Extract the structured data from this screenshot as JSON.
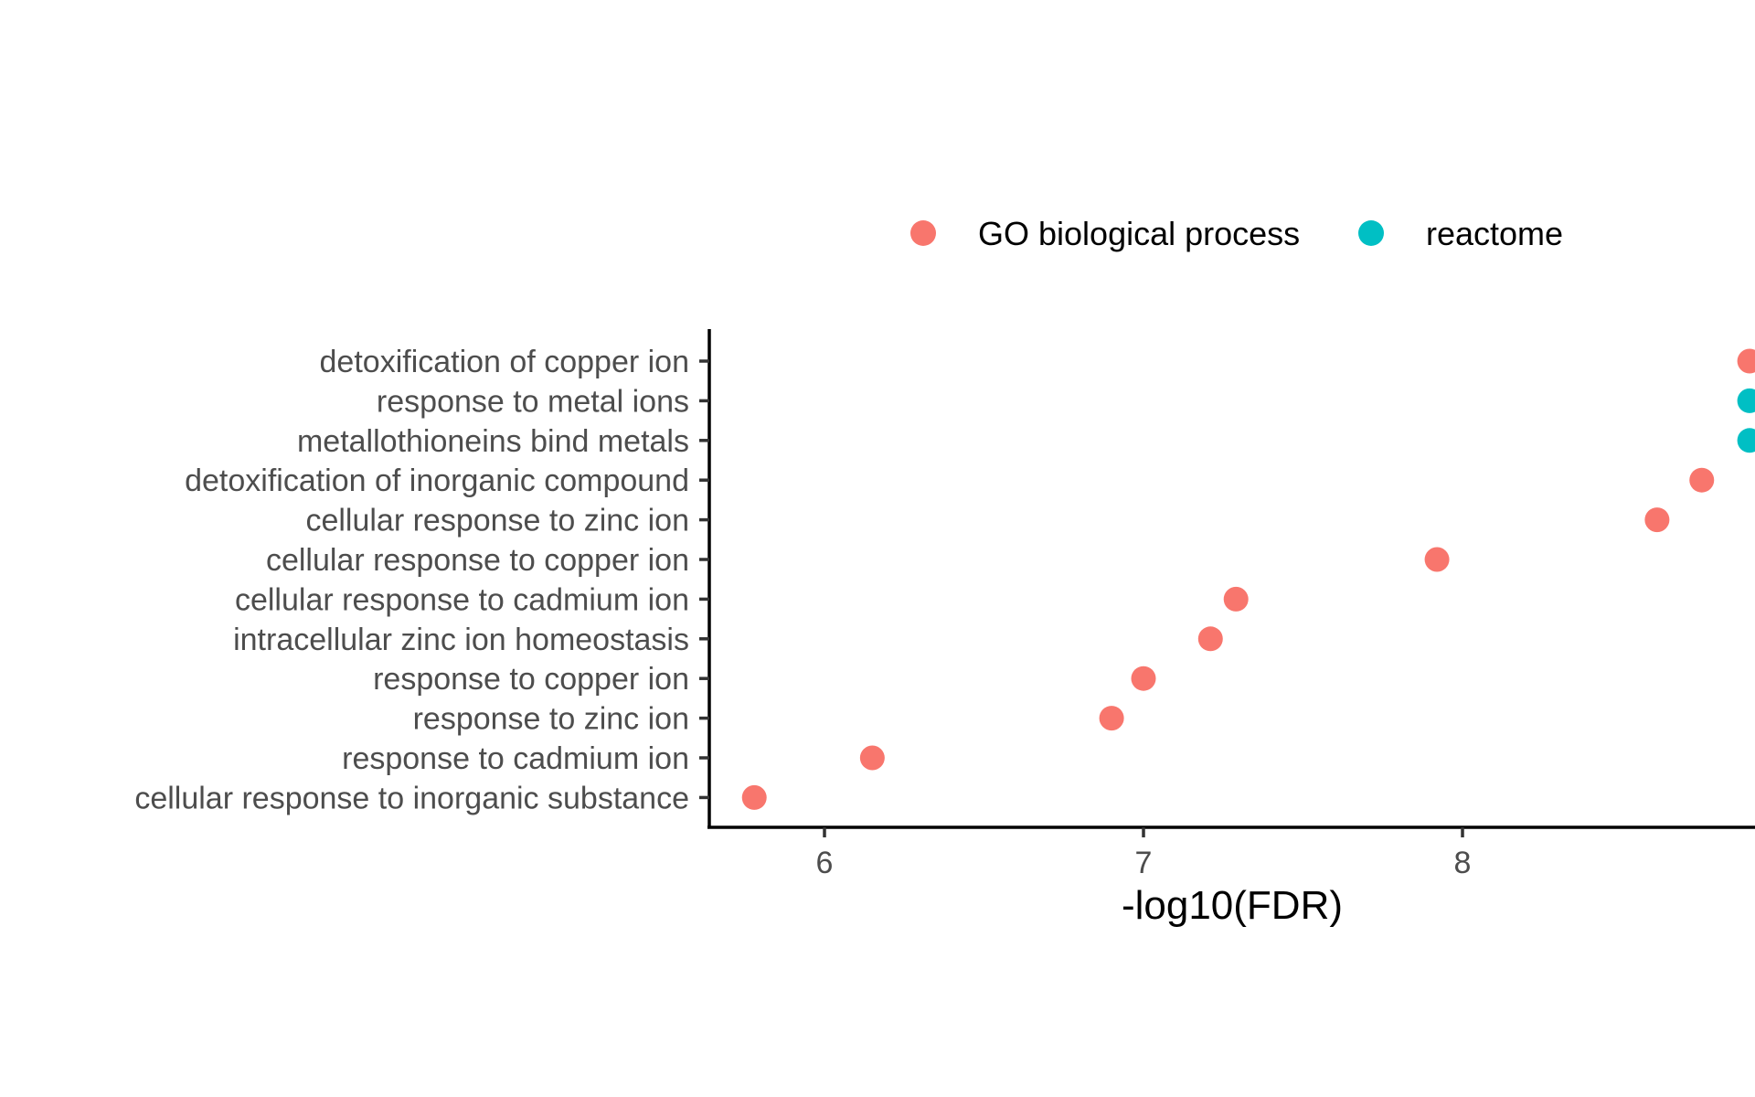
{
  "chart_data": {
    "type": "scatter",
    "title": "",
    "xlabel": "-log10(FDR)",
    "ylabel": "",
    "xlim": [
      5.63,
      8.9
    ],
    "x_ticks": [
      "6",
      "7",
      "8"
    ],
    "grid": false,
    "legend_position": "top",
    "legend": [
      {
        "name": "GO biological process",
        "color": "#F8766D"
      },
      {
        "name": "reactome",
        "color": "#00BFC4"
      }
    ],
    "categories": [
      "detoxification of copper ion",
      "response to metal ions",
      "metallothioneins bind metals",
      "detoxification of inorganic compound",
      "cellular response to zinc ion",
      "cellular response to copper ion",
      "cellular response to cadmium ion",
      "intracellular zinc ion homeostasis",
      "response to copper ion",
      "response to zinc ion",
      "response to cadmium ion",
      "cellular response to inorganic substance"
    ],
    "series": [
      {
        "name": "GO biological process",
        "color": "#F8766D",
        "points": [
          {
            "category": "detoxification of copper ion",
            "x": 8.9
          },
          {
            "category": "detoxification of inorganic compound",
            "x": 8.75
          },
          {
            "category": "cellular response to zinc ion",
            "x": 8.61
          },
          {
            "category": "cellular response to copper ion",
            "x": 7.92
          },
          {
            "category": "cellular response to cadmium ion",
            "x": 7.29
          },
          {
            "category": "intracellular zinc ion homeostasis",
            "x": 7.21
          },
          {
            "category": "response to copper ion",
            "x": 7.0
          },
          {
            "category": "response to zinc ion",
            "x": 6.9
          },
          {
            "category": "response to cadmium ion",
            "x": 6.15
          },
          {
            "category": "cellular response to inorganic substance",
            "x": 5.78
          }
        ]
      },
      {
        "name": "reactome",
        "color": "#00BFC4",
        "points": [
          {
            "category": "response to metal ions",
            "x": 8.9
          },
          {
            "category": "metallothioneins bind metals",
            "x": 8.9
          }
        ]
      }
    ]
  }
}
